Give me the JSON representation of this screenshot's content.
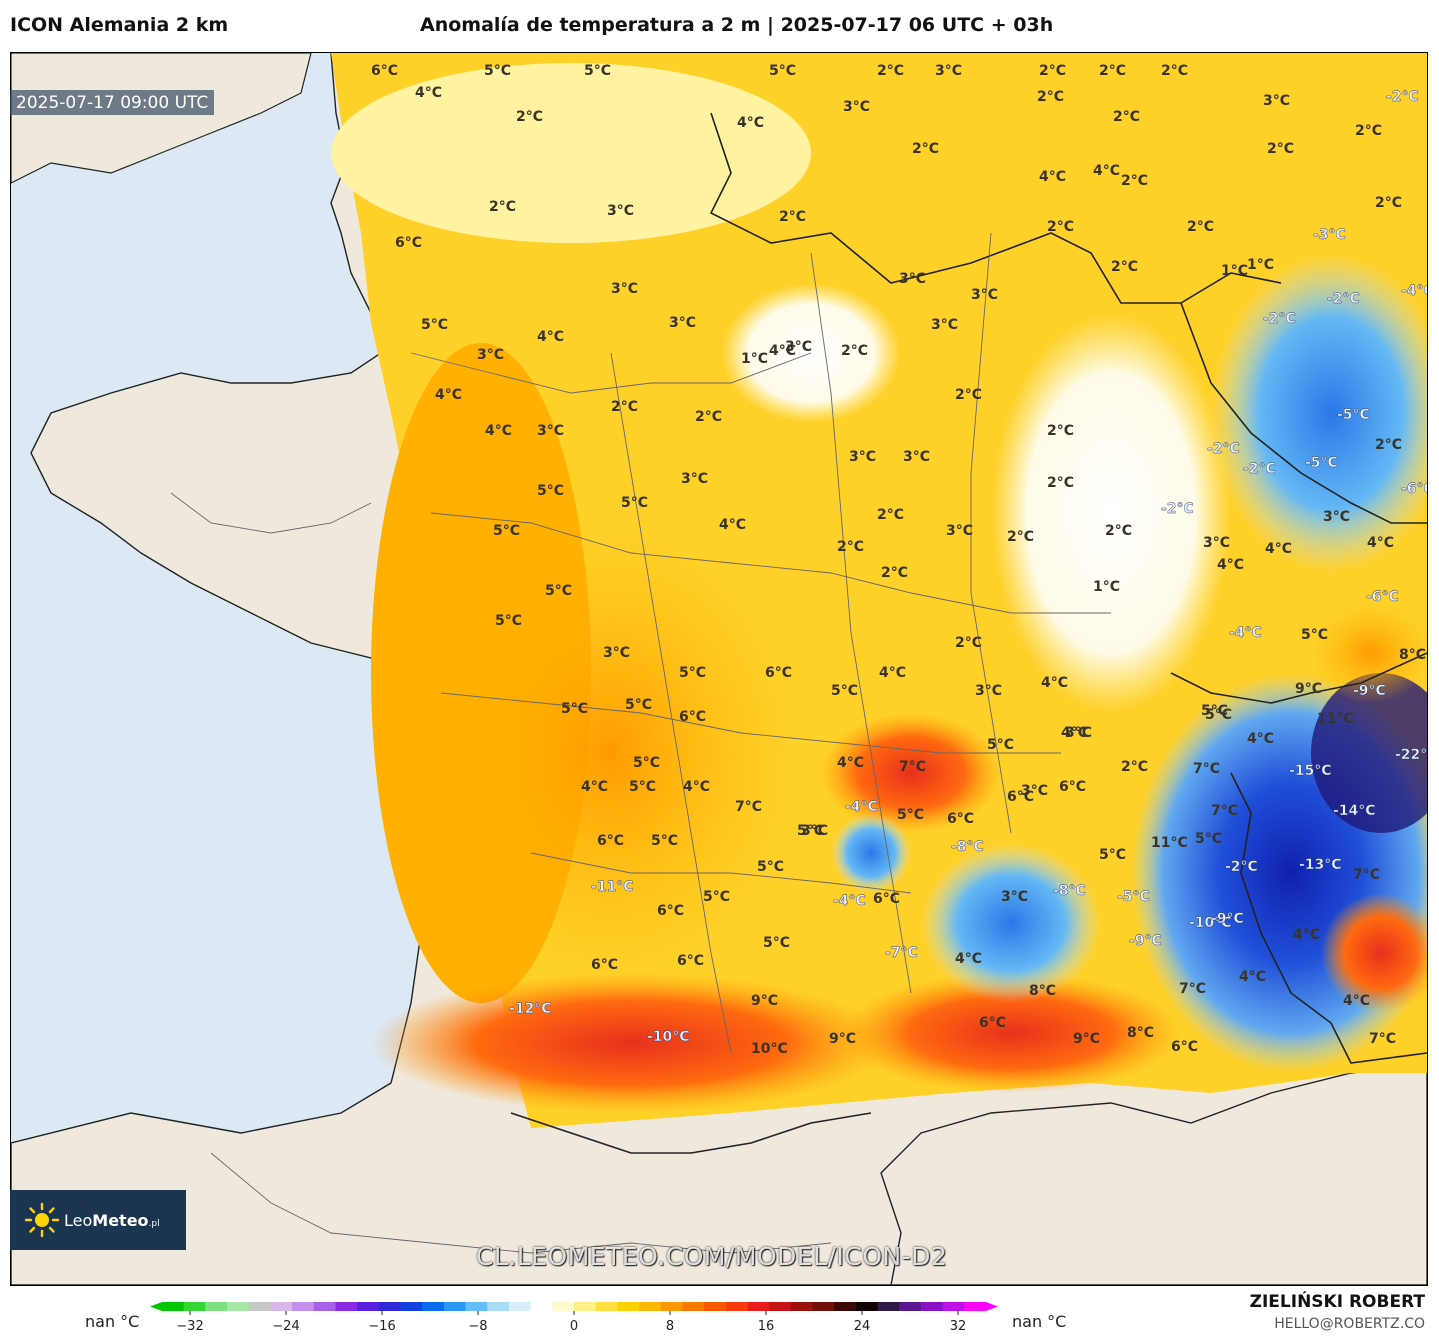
{
  "header": {
    "model_title": "ICON Alemania 2 km",
    "chart_title": "Anomalía de temperatura a 2 m | 2025-07-17 06 UTC + 03h"
  },
  "map": {
    "valid_time": "2025-07-17 09:00 UTC",
    "watermark": "CL.LEOMETEO.COM/MODEL/ICON-D2",
    "logo_text_a": "Leo",
    "logo_text_b": "Meteo",
    "logo_text_c": ".pl",
    "colors": {
      "sea": "#dce8f4",
      "land": "#efe9dd",
      "border": "#333333"
    },
    "labels": [
      "6°C",
      "4°C",
      "5°C",
      "5°C",
      "2°C",
      "5°C",
      "2°C",
      "3°C",
      "2°C",
      "2°C",
      "2°C",
      "3°C",
      "-2°C",
      "4°C",
      "3°C",
      "2°C",
      "2°C",
      "2°C",
      "2°C",
      "2°C",
      "4°C",
      "4°C",
      "2°C",
      "2°C",
      "-3°C",
      "2°C",
      "3°C",
      "2°C",
      "6°C",
      "2°C",
      "2°C",
      "2°C",
      "-2°C",
      "-4°C",
      "5°C",
      "4°C",
      "3°C",
      "3°C",
      "3°C",
      "3°C",
      "3°C",
      "1°C",
      "1°C",
      "-2°C",
      "3°C",
      "4°C",
      "3°C",
      "1°C",
      "2°C",
      "2°C",
      "2°C",
      "4°C",
      "4°C",
      "3°C",
      "2°C",
      "2°C",
      "-5°C",
      "-2°C",
      "-2°C",
      "-5°C",
      "2°C",
      "5°C",
      "3°C",
      "3°C",
      "3°C",
      "2°C",
      "-6°C",
      "5°C",
      "5°C",
      "4°C",
      "2°C",
      "3°C",
      "2°C",
      "3°C",
      "2°C",
      "-2°C",
      "4°C",
      "4°C",
      "2°C",
      "2°C",
      "1°C",
      "3°C",
      "4°C",
      "-6°C",
      "5°C",
      "5°C",
      "3°C",
      "2°C",
      "-4°C",
      "5°C",
      "5°C",
      "6°C",
      "5°C",
      "4°C",
      "3°C",
      "8°C",
      "5°C",
      "5°C",
      "5°C",
      "6°C",
      "4°C",
      "3°C",
      "9°C",
      "-9°C",
      "5°C",
      "5°C",
      "4°C",
      "4°C",
      "7°C",
      "11°C",
      "5°C",
      "4°C",
      "7°C",
      "-22°C",
      "6°C",
      "4°C",
      "7°C",
      "2°C",
      "-15°C",
      "4°C",
      "5°C",
      "6°C",
      "3°C",
      "-8°C",
      "-14°C",
      "6°C",
      "5°C",
      "-4°C",
      "5°C",
      "6°C",
      "5°C",
      "3°C",
      "7°C",
      "5°C",
      "-2°C",
      "-13°C",
      "7°C",
      "11°C",
      "5°C",
      "5°C",
      "6°C",
      "3°C",
      "-8°C",
      "-5°C",
      "-10°C",
      "-9°C",
      "-11°C",
      "5°C",
      "6°C",
      "5°C",
      "4°C",
      "-9°C",
      "-4°C",
      "6°C",
      "6°C",
      "4°C",
      "-7°C",
      "4°C",
      "-12°C",
      "9°C",
      "8°C",
      "7°C",
      "4°C",
      "-10°C",
      "10°C",
      "9°C",
      "6°C",
      "9°C",
      "8°C",
      "6°C",
      "7°C",
      "9°C",
      "10°C",
      "5°C"
    ]
  },
  "legend": {
    "min_label": "nan °C",
    "max_label": "nan °C",
    "ticks": [
      "−32",
      "−24",
      "−16",
      "−8",
      "0",
      "8",
      "16",
      "24",
      "32"
    ],
    "colors": [
      "#00c800",
      "#33d633",
      "#7fe07f",
      "#a8e6a8",
      "#c8c8c8",
      "#d8b8e8",
      "#c490ec",
      "#a860e8",
      "#8c28e4",
      "#5a1ee0",
      "#2e28d8",
      "#1440e0",
      "#0a6cf0",
      "#2a98f8",
      "#64bff8",
      "#a8dcf8",
      "#d8eefa",
      "#ffffff",
      "#fffad0",
      "#fff08c",
      "#ffe040",
      "#ffd000",
      "#ffb800",
      "#ff9800",
      "#ff7800",
      "#ff5a00",
      "#ff3c10",
      "#e81c1c",
      "#c41418",
      "#9c1010",
      "#701008",
      "#3c0808",
      "#100000",
      "#301848",
      "#5a1890",
      "#8c10c8",
      "#c010e8",
      "#ff00ff"
    ]
  },
  "credits": {
    "name": "ZIELIŃSKI ROBERT",
    "email": "HELLO@ROBERTZ.CO"
  }
}
